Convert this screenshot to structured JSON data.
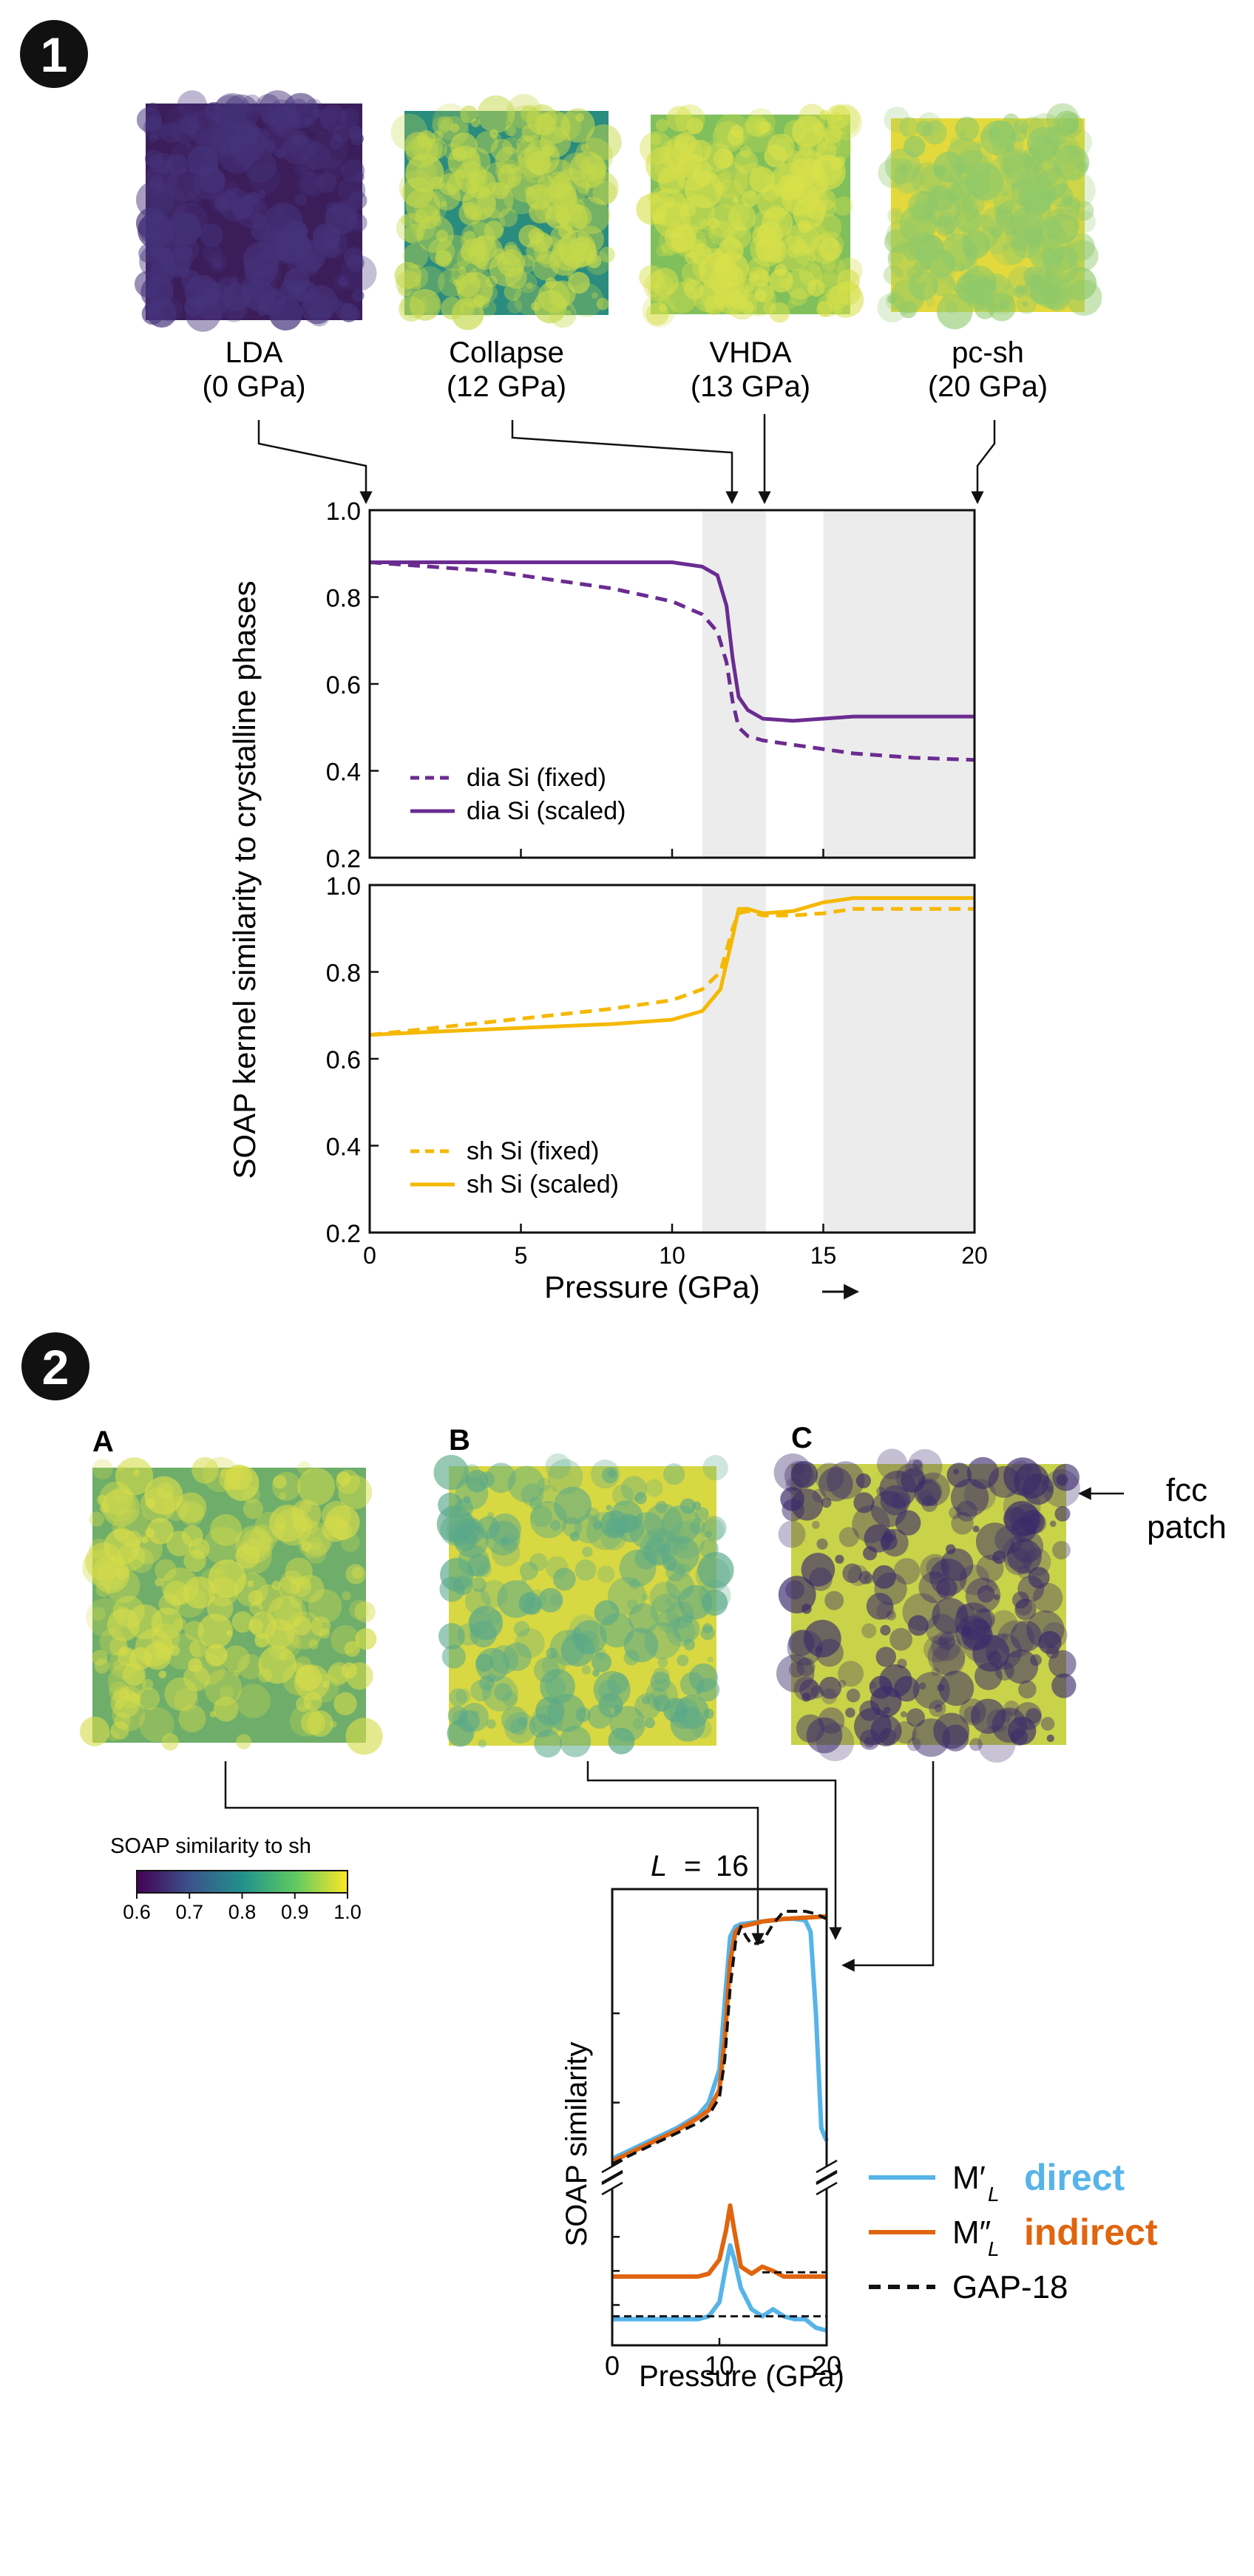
{
  "panel1": {
    "badge": "1",
    "snapshots": [
      {
        "name": "LDA",
        "pressure": "(0 GPa)",
        "pressure_value": 0,
        "fill": "#3b1d5a",
        "noise": "#45327a"
      },
      {
        "name": "Collapse",
        "pressure": "(12 GPa)",
        "pressure_value": 12,
        "fill": "#2a8c7f",
        "noise": "#c6d94a"
      },
      {
        "name": "VHDA",
        "pressure": "(13 GPa)",
        "pressure_value": 13,
        "fill": "#7fbf5c",
        "noise": "#d8e04a"
      },
      {
        "name": "pc-sh",
        "pressure": "(20 GPa)",
        "pressure_value": 20,
        "fill": "#e4d93c",
        "noise": "#8fc96a"
      }
    ],
    "ylabel": "SOAP kernel similarity to crystalline phases",
    "xlabel": "Pressure (GPa)",
    "arrow_glyph": "→"
  },
  "panel2": {
    "badge": "2",
    "snapshots": [
      {
        "label": "A",
        "fill": "#6fae6a",
        "noise": "#d6dc4a"
      },
      {
        "label": "B",
        "fill": "#d8d842",
        "noise": "#5aa98a"
      },
      {
        "label": "C",
        "fill": "#c9d34a",
        "noise": "#3a2a6a"
      }
    ],
    "fcc_label": [
      "fcc",
      "patch"
    ],
    "colorbar": {
      "title": "SOAP similarity to sh",
      "ticks": [
        "0.6",
        "0.7",
        "0.8",
        "0.9",
        "1.0"
      ],
      "colors": [
        "#440154",
        "#3b528b",
        "#21918c",
        "#5ec962",
        "#fde725"
      ]
    },
    "L_label": "L",
    "L_eq": "=",
    "L_value": "16",
    "ylabel": "SOAP similarity",
    "xlabel": "Pressure (GPa)",
    "legend": [
      {
        "symbol": "M′",
        "sub": "L",
        "word": "direct",
        "color": "#56b4e9",
        "dash": false
      },
      {
        "symbol": "M″",
        "sub": "L",
        "word": "indirect",
        "color": "#e0650f",
        "dash": false
      },
      {
        "symbol": "GAP-18",
        "sub": "",
        "word": "",
        "color": "#111111",
        "dash": true
      }
    ]
  },
  "chart_data": [
    {
      "type": "line",
      "title": "",
      "xlabel": "Pressure (GPa)",
      "ylabel": "SOAP kernel similarity to crystalline phases",
      "xlim": [
        0,
        20
      ],
      "ylim": [
        0.2,
        1.0
      ],
      "xticks": [
        "0",
        "5",
        "10",
        "15",
        "20"
      ],
      "yticks": [
        "0.2",
        "0.4",
        "0.6",
        "0.8",
        "1.0"
      ],
      "shaded_regions": [
        [
          11,
          13.1
        ],
        [
          15,
          20
        ]
      ],
      "legend_position": "bottom-left",
      "series": [
        {
          "name": "dia Si (fixed)",
          "color": "#6a2c91",
          "dash": true,
          "x": [
            0,
            2,
            4,
            6,
            8,
            10,
            11,
            11.5,
            11.8,
            12.0,
            12.2,
            12.5,
            13,
            14,
            15,
            16,
            18,
            20
          ],
          "y": [
            0.88,
            0.87,
            0.86,
            0.84,
            0.82,
            0.79,
            0.76,
            0.72,
            0.65,
            0.56,
            0.5,
            0.48,
            0.47,
            0.46,
            0.45,
            0.44,
            0.43,
            0.425
          ]
        },
        {
          "name": "dia Si (scaled)",
          "color": "#6a2c91",
          "dash": false,
          "x": [
            0,
            2,
            4,
            6,
            8,
            10,
            11,
            11.5,
            11.8,
            12.0,
            12.2,
            12.5,
            13,
            14,
            15,
            16,
            18,
            20
          ],
          "y": [
            0.88,
            0.88,
            0.88,
            0.88,
            0.88,
            0.88,
            0.87,
            0.85,
            0.78,
            0.66,
            0.57,
            0.54,
            0.52,
            0.515,
            0.52,
            0.525,
            0.525,
            0.525
          ]
        }
      ]
    },
    {
      "type": "line",
      "title": "",
      "xlabel": "Pressure (GPa)",
      "ylabel": "SOAP kernel similarity to crystalline phases",
      "xlim": [
        0,
        20
      ],
      "ylim": [
        0.2,
        1.0
      ],
      "xticks": [
        "0",
        "5",
        "10",
        "15",
        "20"
      ],
      "yticks": [
        "0.2",
        "0.4",
        "0.6",
        "0.8",
        "1.0"
      ],
      "shaded_regions": [
        [
          11,
          13.1
        ],
        [
          15,
          20
        ]
      ],
      "legend_position": "bottom-left",
      "series": [
        {
          "name": "sh Si (fixed)",
          "color": "#f5b800",
          "dash": true,
          "x": [
            0,
            2,
            4,
            6,
            8,
            10,
            11,
            11.6,
            12.0,
            12.2,
            12.5,
            13,
            14,
            15,
            16,
            18,
            20
          ],
          "y": [
            0.655,
            0.67,
            0.685,
            0.7,
            0.715,
            0.735,
            0.76,
            0.8,
            0.9,
            0.935,
            0.94,
            0.93,
            0.93,
            0.935,
            0.945,
            0.945,
            0.945
          ]
        },
        {
          "name": "sh Si (scaled)",
          "color": "#f5b800",
          "dash": false,
          "x": [
            0,
            2,
            4,
            6,
            8,
            10,
            11,
            11.6,
            12.0,
            12.2,
            12.5,
            13,
            14,
            15,
            16,
            18,
            20
          ],
          "y": [
            0.655,
            0.662,
            0.668,
            0.674,
            0.68,
            0.69,
            0.71,
            0.76,
            0.88,
            0.945,
            0.945,
            0.935,
            0.94,
            0.96,
            0.97,
            0.97,
            0.97
          ]
        }
      ]
    },
    {
      "type": "line",
      "title": "L = 16",
      "xlabel": "Pressure (GPa)",
      "ylabel": "SOAP similarity",
      "xlim": [
        0,
        20
      ],
      "ylim": [
        0,
        1
      ],
      "xticks": [
        "0",
        "10",
        "20"
      ],
      "legend_position": "right",
      "series": [
        {
          "name": "M′L direct",
          "color": "#56b4e9",
          "dash": false,
          "x": [
            0,
            2,
            4,
            6,
            8,
            9,
            10,
            10.5,
            11,
            11.5,
            12,
            13,
            14,
            15,
            16,
            17,
            18,
            18.5,
            19,
            19.5,
            20
          ],
          "y": [
            0.03,
            0.07,
            0.11,
            0.15,
            0.2,
            0.25,
            0.38,
            0.65,
            0.9,
            0.94,
            0.95,
            0.955,
            0.96,
            0.965,
            0.97,
            0.97,
            0.965,
            0.92,
            0.6,
            0.15,
            0.1
          ]
        },
        {
          "name": "M″L indirect",
          "color": "#e0650f",
          "dash": false,
          "x": [
            0,
            2,
            4,
            6,
            8,
            9,
            10,
            10.5,
            11,
            11.5,
            12,
            13,
            14,
            15,
            16,
            18,
            20
          ],
          "y": [
            0.02,
            0.06,
            0.1,
            0.14,
            0.19,
            0.22,
            0.3,
            0.5,
            0.8,
            0.92,
            0.94,
            0.95,
            0.96,
            0.965,
            0.97,
            0.975,
            0.98
          ]
        },
        {
          "name": "GAP-18",
          "color": "#111111",
          "dash": true,
          "x": [
            0,
            2,
            4,
            6,
            8,
            9,
            10,
            10.5,
            11,
            11.5,
            12,
            12.5,
            13,
            14,
            15,
            16,
            17,
            18,
            19,
            20
          ],
          "y": [
            0.01,
            0.05,
            0.09,
            0.13,
            0.17,
            0.2,
            0.27,
            0.42,
            0.7,
            0.88,
            0.94,
            0.9,
            0.87,
            0.88,
            0.95,
            1.0,
            1.0,
            1.0,
            0.99,
            0.97
          ]
        }
      ]
    },
    {
      "type": "line",
      "title": "",
      "xlabel": "Pressure (GPa)",
      "xlim": [
        0,
        20
      ],
      "xticks": [
        "0",
        "10",
        "20"
      ],
      "series": [
        {
          "name": "M′L direct",
          "color": "#56b4e9",
          "dash": false,
          "x": [
            0,
            4,
            8,
            9,
            10,
            10.6,
            11,
            11.4,
            12,
            13,
            14,
            15,
            16,
            17,
            18,
            19,
            20
          ],
          "y": [
            0.08,
            0.08,
            0.08,
            0.1,
            0.2,
            0.45,
            0.6,
            0.5,
            0.3,
            0.15,
            0.1,
            0.15,
            0.1,
            0.08,
            0.08,
            0.02,
            0.0
          ]
        },
        {
          "name": "M″L indirect",
          "color": "#e0650f",
          "dash": false,
          "x": [
            0,
            4,
            8,
            9,
            10,
            10.6,
            11,
            11.4,
            12,
            13,
            14,
            15,
            16,
            17,
            18,
            19,
            20
          ],
          "y": [
            0.38,
            0.38,
            0.38,
            0.4,
            0.5,
            0.7,
            0.88,
            0.7,
            0.45,
            0.4,
            0.45,
            0.42,
            0.38,
            0.38,
            0.38,
            0.38,
            0.38
          ]
        },
        {
          "name": "GAP-18 (direct ref)",
          "color": "#111111",
          "dash": true,
          "x": [
            0,
            20
          ],
          "y": [
            0.1,
            0.1
          ]
        },
        {
          "name": "GAP-18 (indirect ref)",
          "color": "#111111",
          "dash": true,
          "x": [
            14,
            20
          ],
          "y": [
            0.41,
            0.41
          ]
        }
      ]
    }
  ]
}
